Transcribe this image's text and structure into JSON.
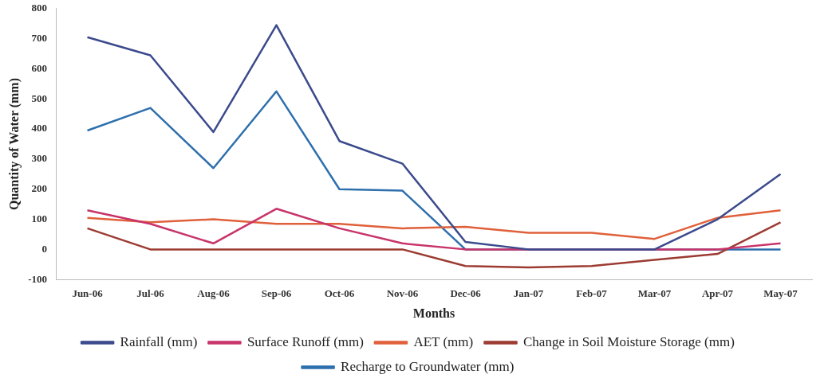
{
  "chart_data": {
    "type": "line",
    "xlabel": "Months",
    "ylabel": "Quantity of Water (mm)",
    "categories": [
      "Jun-06",
      "Jul-06",
      "Aug-06",
      "Sep-06",
      "Oct-06",
      "Nov-06",
      "Dec-06",
      "Jan-07",
      "Feb-07",
      "Mar-07",
      "Apr-07",
      "May-07"
    ],
    "series": [
      {
        "name": "Rainfall (mm)",
        "color": "#3b4a8c",
        "values": [
          705,
          645,
          390,
          745,
          360,
          285,
          25,
          0,
          0,
          0,
          100,
          250
        ]
      },
      {
        "name": "Surface Runoff (mm)",
        "color": "#c8336a",
        "values": [
          130,
          85,
          20,
          135,
          70,
          20,
          0,
          0,
          0,
          0,
          0,
          20
        ]
      },
      {
        "name": "AET (mm)",
        "color": "#e0603a",
        "values": [
          105,
          90,
          100,
          85,
          85,
          70,
          75,
          55,
          55,
          35,
          105,
          130
        ]
      },
      {
        "name": "Change in Soil Moisture Storage (mm)",
        "color": "#9c3b32",
        "values": [
          70,
          0,
          0,
          0,
          0,
          0,
          -55,
          -60,
          -55,
          -35,
          -15,
          90
        ]
      },
      {
        "name": "Recharge to Groundwater (mm)",
        "color": "#2e6fad",
        "values": [
          395,
          470,
          270,
          525,
          200,
          195,
          0,
          0,
          0,
          0,
          0,
          0
        ]
      }
    ],
    "ylim": [
      -100,
      800
    ],
    "yticks": [
      -100,
      0,
      100,
      200,
      300,
      400,
      500,
      600,
      700,
      800
    ],
    "grid": false,
    "legend": "bottom",
    "marker": "none",
    "line_style": "solid"
  }
}
